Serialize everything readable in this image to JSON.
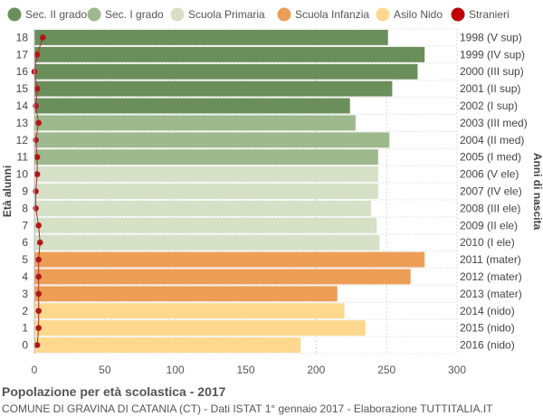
{
  "chart_data": {
    "type": "bar",
    "orientation": "horizontal",
    "title": "Popolazione per età scolastica - 2017",
    "subtitle": "COMUNE DI GRAVINA DI CATANIA (CT) - Dati ISTAT 1° gennaio 2017 - Elaborazione TUTTITALIA.IT",
    "ylabel_left": "Età alunni",
    "ylabel_right": "Anni di nascita",
    "xlim": [
      0,
      300
    ],
    "xticks": [
      0,
      50,
      100,
      150,
      200,
      250,
      300
    ],
    "grid": true,
    "legend_position": "top",
    "legend": [
      {
        "name": "Sec. II grado",
        "color": "#6b8f5a"
      },
      {
        "name": "Sec. I grado",
        "color": "#9db98d"
      },
      {
        "name": "Scuola Primaria",
        "color": "#d5e0c6"
      },
      {
        "name": "Scuola Infanzia",
        "color": "#ec9e56"
      },
      {
        "name": "Asilo Nido",
        "color": "#fdd88e"
      },
      {
        "name": "Stranieri",
        "color": "#c00000"
      }
    ],
    "rows": [
      {
        "age": "18",
        "year": "1998 (V sup)",
        "value": 251,
        "foreign": 6,
        "group": 0
      },
      {
        "age": "17",
        "year": "1999 (IV sup)",
        "value": 277,
        "foreign": 2,
        "group": 0
      },
      {
        "age": "16",
        "year": "2000 (III sup)",
        "value": 272,
        "foreign": 0,
        "group": 0
      },
      {
        "age": "15",
        "year": "2001 (II sup)",
        "value": 254,
        "foreign": 2,
        "group": 0
      },
      {
        "age": "14",
        "year": "2002 (I sup)",
        "value": 224,
        "foreign": 1,
        "group": 0
      },
      {
        "age": "13",
        "year": "2003 (III med)",
        "value": 228,
        "foreign": 3,
        "group": 1
      },
      {
        "age": "12",
        "year": "2004 (II med)",
        "value": 252,
        "foreign": 1,
        "group": 1
      },
      {
        "age": "11",
        "year": "2005 (I med)",
        "value": 244,
        "foreign": 2,
        "group": 1
      },
      {
        "age": "10",
        "year": "2006 (V ele)",
        "value": 244,
        "foreign": 2,
        "group": 2
      },
      {
        "age": "9",
        "year": "2007 (IV ele)",
        "value": 244,
        "foreign": 1,
        "group": 2
      },
      {
        "age": "8",
        "year": "2008 (III ele)",
        "value": 239,
        "foreign": 1,
        "group": 2
      },
      {
        "age": "7",
        "year": "2009 (II ele)",
        "value": 243,
        "foreign": 3,
        "group": 2
      },
      {
        "age": "6",
        "year": "2010 (I ele)",
        "value": 245,
        "foreign": 4,
        "group": 2
      },
      {
        "age": "5",
        "year": "2011 (mater)",
        "value": 277,
        "foreign": 3,
        "group": 3
      },
      {
        "age": "4",
        "year": "2012 (mater)",
        "value": 267,
        "foreign": 3,
        "group": 3
      },
      {
        "age": "3",
        "year": "2013 (mater)",
        "value": 215,
        "foreign": 3,
        "group": 3
      },
      {
        "age": "2",
        "year": "2014 (nido)",
        "value": 220,
        "foreign": 3,
        "group": 4
      },
      {
        "age": "1",
        "year": "2015 (nido)",
        "value": 235,
        "foreign": 3,
        "group": 4
      },
      {
        "age": "0",
        "year": "2016 (nido)",
        "value": 189,
        "foreign": 2,
        "group": 4
      }
    ]
  }
}
